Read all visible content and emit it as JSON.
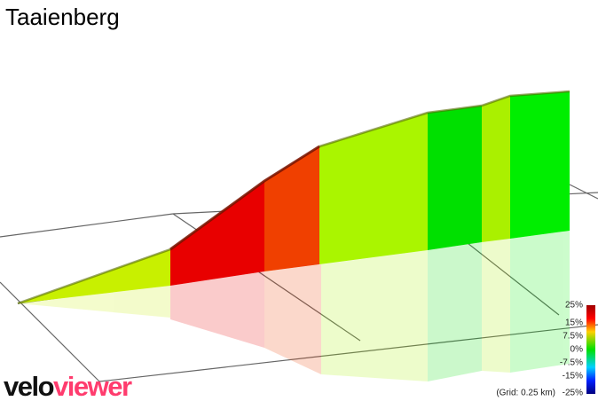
{
  "title": "Taaienberg",
  "logo": {
    "first": "velo",
    "second": "viewer"
  },
  "legend": {
    "labels": [
      "25%",
      "15%",
      "7.5%",
      "0%",
      "-7.5%",
      "-15%",
      "-25%"
    ],
    "note": "(Grid: 0.25 km)"
  }
}
